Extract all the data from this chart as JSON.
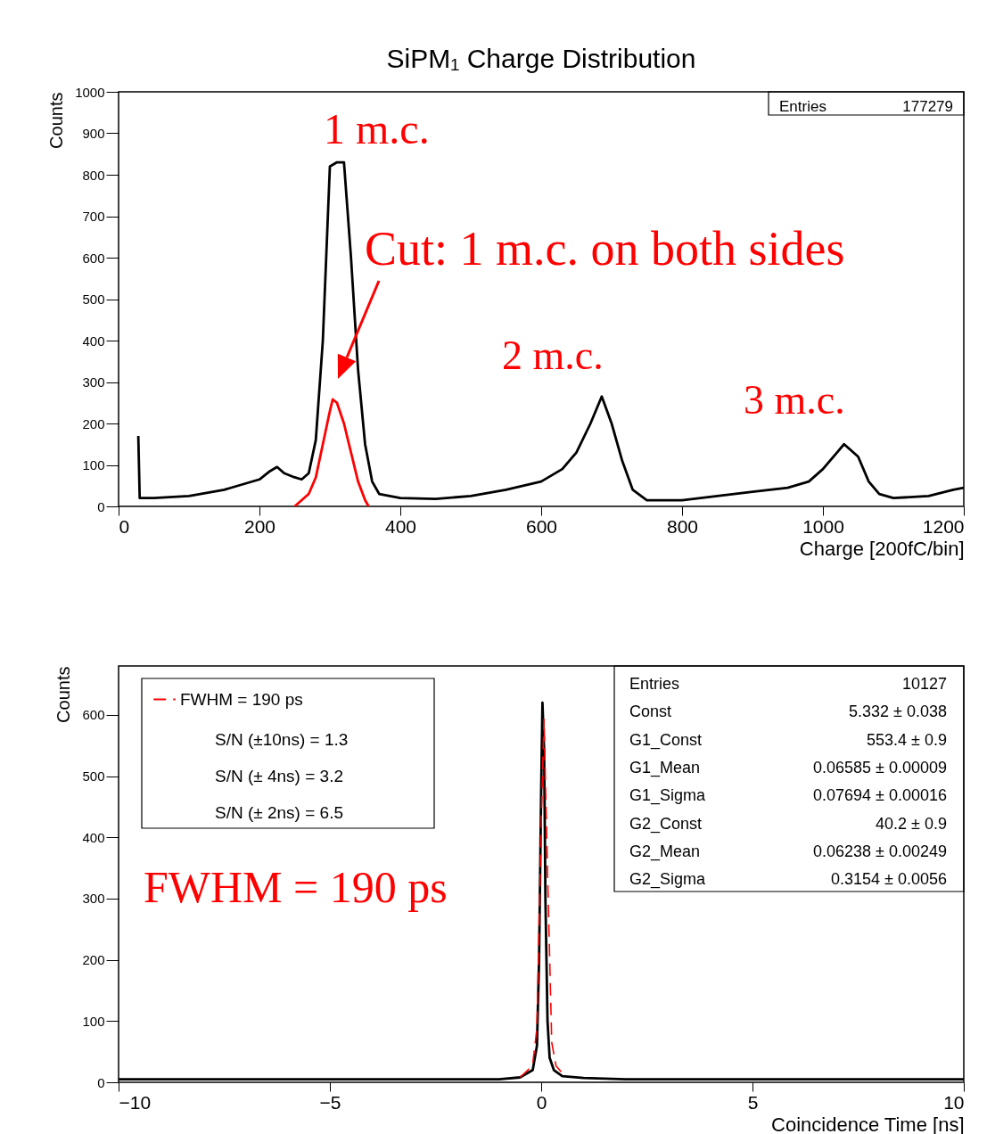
{
  "chart_data": [
    {
      "type": "line",
      "title": "SiPM₁ Charge Distribution",
      "xlabel": "Charge [200fC/bin]",
      "ylabel": "Counts",
      "xlim": [
        0,
        1200
      ],
      "xticks": [
        0,
        200,
        400,
        600,
        800,
        1000,
        1200
      ],
      "ylim": [
        0,
        1000
      ],
      "yticks": [
        0,
        100,
        200,
        300,
        400,
        500,
        600,
        700,
        800,
        900,
        1000
      ],
      "grid": false,
      "marker": "none",
      "series": [
        {
          "color": "#000000",
          "x": [
            28,
            30,
            50,
            100,
            150,
            200,
            215,
            225,
            235,
            250,
            260,
            270,
            280,
            290,
            300,
            310,
            320,
            330,
            340,
            350,
            360,
            370,
            400,
            450,
            500,
            550,
            600,
            630,
            650,
            670,
            686,
            700,
            715,
            730,
            750,
            800,
            850,
            900,
            950,
            980,
            1000,
            1020,
            1030,
            1050,
            1065,
            1080,
            1100,
            1150,
            1185,
            1200
          ],
          "values": [
            170,
            20,
            20,
            25,
            40,
            65,
            85,
            95,
            80,
            70,
            65,
            80,
            160,
            400,
            820,
            830,
            830,
            600,
            330,
            150,
            60,
            30,
            20,
            18,
            25,
            40,
            60,
            90,
            130,
            200,
            265,
            200,
            110,
            40,
            15,
            15,
            25,
            35,
            45,
            60,
            90,
            130,
            150,
            120,
            60,
            30,
            20,
            25,
            40,
            45
          ]
        },
        {
          "color": "#ff0000",
          "x": [
            250,
            260,
            270,
            280,
            290,
            300,
            304,
            310,
            320,
            330,
            340,
            350,
            355
          ],
          "values": [
            0,
            15,
            30,
            70,
            150,
            230,
            258,
            250,
            200,
            130,
            60,
            15,
            0
          ]
        }
      ],
      "annotations": [
        "1 m.c.",
        "Cut: 1 m.c. on both sides",
        "2 m.c.",
        "3 m.c.",
        "Entries",
        "177279"
      ]
    },
    {
      "type": "line",
      "xlabel": "Coincidence Time [ns]",
      "ylabel": "Counts",
      "xlim": [
        -10,
        10
      ],
      "xticks": [
        -10,
        -5,
        0,
        5,
        10
      ],
      "ylim": [
        0,
        680
      ],
      "yticks": [
        0,
        100,
        200,
        300,
        400,
        500,
        600
      ],
      "grid": false,
      "legend": "top left",
      "marker": "none",
      "series": [
        {
          "color": "#000000",
          "x": [
            -10,
            -5,
            -1,
            -0.5,
            -0.2,
            -0.1,
            -0.05,
            0,
            0.03,
            0.07,
            0.1,
            0.15,
            0.2,
            0.3,
            0.5,
            1,
            2,
            5,
            10
          ],
          "values": [
            5,
            5,
            5,
            8,
            20,
            60,
            200,
            480,
            620,
            540,
            300,
            100,
            40,
            20,
            10,
            7,
            5,
            5,
            5
          ]
        },
        {
          "name": "FWHM = 190 ps",
          "color": "#ff0000",
          "line_style": "dashed",
          "x": [
            -0.5,
            -0.3,
            -0.2,
            -0.1,
            0,
            0.066,
            0.15,
            0.25,
            0.35,
            0.5
          ],
          "values": [
            8,
            21,
            30,
            89,
            421,
            593,
            344,
            65,
            27,
            15
          ]
        }
      ],
      "annotations": [
        "S/N (±10ns) = 1.3",
        "S/N (± 4ns) = 3.2",
        "S/N (± 2ns) = 6.5",
        "FWHM = 190 ps",
        "Entries",
        "10127",
        "Const",
        "5.332 ± 0.038",
        "G1_Const",
        "553.4 ± 0.9",
        "G1_Mean",
        "0.06585 ± 0.00009",
        "G1_Sigma",
        "0.07694 ± 0.00016",
        "G2_Const",
        "40.2 ± 0.9",
        "G2_Mean",
        "0.06238 ± 0.00249",
        "G2_Sigma",
        "0.3154 ± 0.0056"
      ]
    }
  ]
}
